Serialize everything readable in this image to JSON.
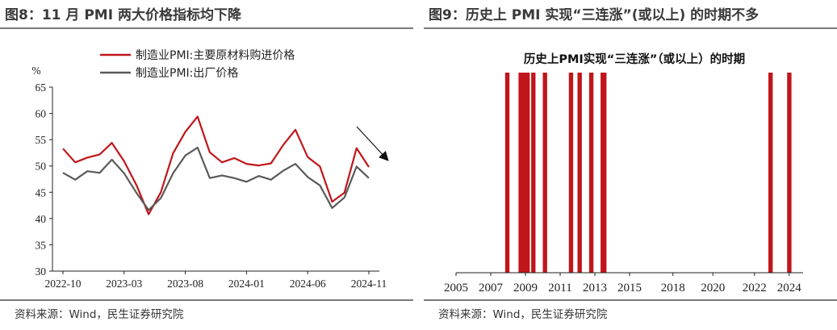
{
  "left_panel": {
    "figure_title": "图8：11 月 PMI 两大价格指标均下降",
    "source": "资料来源：Wind，民生证券研究院"
  },
  "right_panel": {
    "figure_title": "图9：历史上 PMI 实现“三连涨”(或以上) 的时期不多",
    "source": "资料来源：Wind，民生证券研究院"
  },
  "chart_data": [
    {
      "type": "line",
      "title": "",
      "ylabel": "%",
      "ylim": [
        30,
        65
      ],
      "yticks": [
        30,
        35,
        40,
        45,
        50,
        55,
        60,
        65
      ],
      "xtick_labels": [
        "2022-10",
        "2023-03",
        "2023-08",
        "2024-01",
        "2024-06",
        "2024-11"
      ],
      "x": [
        "2022-10",
        "2022-11",
        "2022-12",
        "2023-01",
        "2023-02",
        "2023-03",
        "2023-04",
        "2023-05",
        "2023-06",
        "2023-07",
        "2023-08",
        "2023-09",
        "2023-10",
        "2023-11",
        "2023-12",
        "2024-01",
        "2024-02",
        "2024-03",
        "2024-04",
        "2024-05",
        "2024-06",
        "2024-07",
        "2024-08",
        "2024-09",
        "2024-10",
        "2024-11"
      ],
      "series": [
        {
          "name": "制造业PMI:主要原材料购进价格",
          "color": "#c0161b",
          "values": [
            53.3,
            50.7,
            51.6,
            52.2,
            54.4,
            50.9,
            46.4,
            40.8,
            45.0,
            52.4,
            56.5,
            59.4,
            52.6,
            50.7,
            51.5,
            50.4,
            50.1,
            50.5,
            54.0,
            56.9,
            51.7,
            49.9,
            43.2,
            44.9,
            53.4,
            49.8
          ]
        },
        {
          "name": "制造业PMI:出厂价格",
          "color": "#5a5a5a",
          "values": [
            48.7,
            47.4,
            49.0,
            48.7,
            51.2,
            48.6,
            44.9,
            41.6,
            43.9,
            48.6,
            52.0,
            53.5,
            47.7,
            48.2,
            47.7,
            47.0,
            48.1,
            47.4,
            49.1,
            50.4,
            47.9,
            46.3,
            42.0,
            44.0,
            49.9,
            47.7
          ]
        }
      ],
      "grid": false,
      "legend": "top"
    },
    {
      "type": "bar",
      "title": "历史上PMI实现“三连涨”（或以上）的时期",
      "xlim": [
        2005,
        2025
      ],
      "xtick_labels": [
        "2005",
        "2007",
        "2009",
        "2011",
        "2013",
        "2015",
        "2018",
        "2020",
        "2022",
        "2024"
      ],
      "x_tick_years": [
        2005,
        2007,
        2009,
        2011,
        2013,
        2015,
        2017.5,
        2019.8,
        2022.2,
        2024.2
      ],
      "periods": [
        {
          "start": 2007.83,
          "end": 2008.08
        },
        {
          "start": 2008.6,
          "end": 2009.25
        },
        {
          "start": 2009.33,
          "end": 2009.58
        },
        {
          "start": 2010.0,
          "end": 2010.25
        },
        {
          "start": 2011.5,
          "end": 2011.75
        },
        {
          "start": 2012.0,
          "end": 2012.25
        },
        {
          "start": 2012.67,
          "end": 2012.92
        },
        {
          "start": 2013.33,
          "end": 2013.67
        },
        {
          "start": 2023.0,
          "end": 2023.25
        },
        {
          "start": 2024.08,
          "end": 2024.33
        }
      ],
      "color": "#c0161b",
      "grid": false
    }
  ]
}
